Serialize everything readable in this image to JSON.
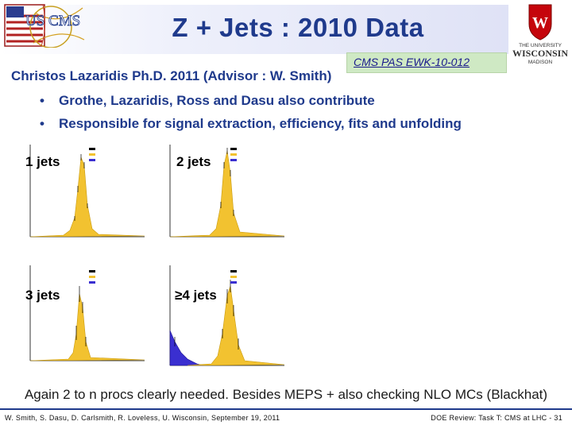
{
  "slide": {
    "title": "Z + Jets : 2010 Data",
    "reference": "CMS PAS EWK-10-012",
    "author_line": "Christos Lazaridis Ph.D. 2011 (Advisor : W. Smith)",
    "bullets": [
      "Grothe, Lazaridis, Ross and Dasu also contribute",
      "Responsible for signal extraction, efficiency, fits and unfolding"
    ],
    "plots": [
      {
        "label": "1 jets"
      },
      {
        "label": "2 jets"
      },
      {
        "label": "3 jets"
      },
      {
        "label": "≥4 jets"
      }
    ],
    "conclusion": "Again 2 to n procs clearly needed. Besides MEPS + also checking NLO MCs (Blackhat)",
    "footer_left": "W. Smith, S. Dasu, D. Carlsmith, R. Loveless, U. Wisconsin, September 19, 2011",
    "footer_right": "DOE Review: Task T: CMS at LHC - 31",
    "logos": {
      "left": "US CMS",
      "right_top": "THE UNIVERSITY",
      "right_main": "WISCONSIN",
      "right_sub": "MADISON"
    },
    "colors": {
      "title": "#1f3a8c",
      "signal": "#f2c230",
      "background": "#3a2fd0",
      "reference_box": "#cfe9c4"
    }
  }
}
